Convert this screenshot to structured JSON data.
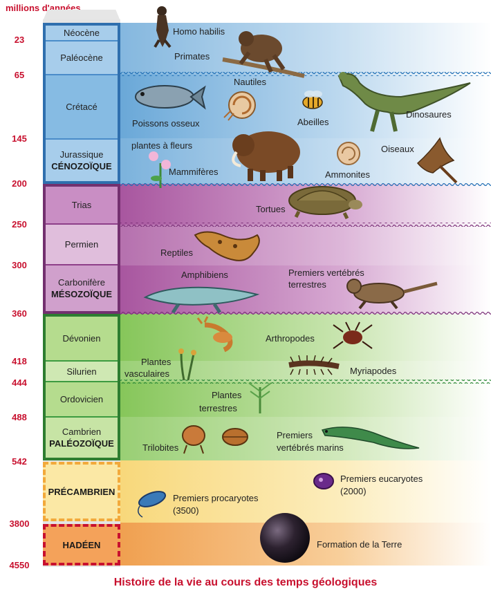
{
  "axis": {
    "title": "millions d'années",
    "ticks": [
      "23",
      "65",
      "145",
      "200",
      "250",
      "300",
      "360",
      "418",
      "444",
      "488",
      "542",
      "3800",
      "4550"
    ]
  },
  "eras": {
    "cenozoique": "CÉNOZOÏQUE",
    "mesozoique": "MÉSOZOÏQUE",
    "paleozoique": "PALÉOZOÏQUE",
    "precambrien": "PRÉCAMBRIEN",
    "hadeen": "HADÉEN"
  },
  "periods": {
    "neocene": "Néocène",
    "paleocene": "Paléocène",
    "cretace": "Crétacé",
    "jurassique": "Jurassique",
    "trias": "Trias",
    "permien": "Permien",
    "carbonifere": "Carbonifère",
    "devonien": "Dévonien",
    "silurien": "Silurien",
    "ordovicien": "Ordovicien",
    "cambrien": "Cambrien"
  },
  "organisms": {
    "homo_habilis": "Homo habilis",
    "primates": "Primates",
    "nautiles": "Nautiles",
    "poissons_osseux": "Poissons osseux",
    "abeilles": "Abeilles",
    "dinosaures": "Dinosaures",
    "plantes_fleurs": "plantes à fleurs",
    "mammiferes": "Mammifères",
    "oiseaux": "Oiseaux",
    "ammonites": "Ammonites",
    "tortues": "Tortues",
    "reptiles": "Reptiles",
    "amphibiens": "Amphibiens",
    "vertebres_terrestres_1": "Premiers vertébrés",
    "vertebres_terrestres_2": "terrestres",
    "arthropodes": "Arthropodes",
    "plantes_vasculaires_1": "Plantes",
    "plantes_vasculaires_2": "vasculaires",
    "myriapodes": "Myriapodes",
    "plantes_terrestres_1": "Plantes",
    "plantes_terrestres_2": "terrestres",
    "trilobites": "Trilobites",
    "vertebres_marins_1": "Premiers",
    "vertebres_marins_2": "vertébrés marins",
    "eucaryotes_1": "Premiers eucaryotes",
    "eucaryotes_2": "(2000)",
    "procaryotes_1": "Premiers procaryotes",
    "procaryotes_2": "(3500)",
    "terre": "Formation de la Terre"
  },
  "caption": "Histoire de la vie au cours des temps géologiques",
  "colors": {
    "cenozoique": "#5b9bd5",
    "mesozoique": "#9b4f96",
    "paleozoique": "#6dba45",
    "precambrien": "#f6d365",
    "hadeen": "#f2994a",
    "accent": "#c8102e"
  }
}
